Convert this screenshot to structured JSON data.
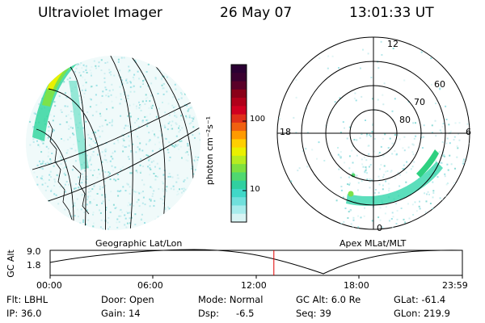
{
  "header": {
    "instrument": "Ultraviolet Imager",
    "date": "26 May 07",
    "time": "13:01:33 UT"
  },
  "left_panel": {
    "label": "Geographic Lat/Lon"
  },
  "right_panel": {
    "label": "Apex  MLat/MLT",
    "mlt_labels": [
      "12",
      "18",
      "6",
      "0"
    ],
    "lat_labels": [
      "60",
      "70",
      "80"
    ]
  },
  "colorbar": {
    "unit_label": "photon cm⁻²s⁻¹",
    "ticks": [
      "100",
      "10"
    ],
    "colors": [
      "#2b0033",
      "#3a0030",
      "#5a0028",
      "#8a0018",
      "#b0001a",
      "#d00020",
      "#e0301a",
      "#f06010",
      "#ff9a00",
      "#ffcf00",
      "#eaf000",
      "#b8ec20",
      "#7ee040",
      "#50d870",
      "#30d0a0",
      "#40d8c8",
      "#70e0dc",
      "#a8ecec",
      "#d8f4f4"
    ]
  },
  "timeline": {
    "axis_label": "GC Alt",
    "y_ticks": [
      "9.0",
      "1.8"
    ],
    "x_ticks": [
      "00:00",
      "06:00",
      "12:00",
      "18:00",
      "23:59"
    ],
    "current_time_fraction": 0.5427
  },
  "info": {
    "row1": {
      "flt": "Flt: LBHL",
      "door": "Door: Open",
      "mode": "Mode: Normal",
      "gcalt": "GC Alt: 6.0 Re",
      "glat": "GLat: -61.4"
    },
    "row2": {
      "ip": "IP: 36.0",
      "gain": "Gain: 14",
      "dsp_label": "Dsp:",
      "dsp_value": "-6.5",
      "seq": "Seq: 39",
      "glon": "GLon: 219.9"
    }
  }
}
